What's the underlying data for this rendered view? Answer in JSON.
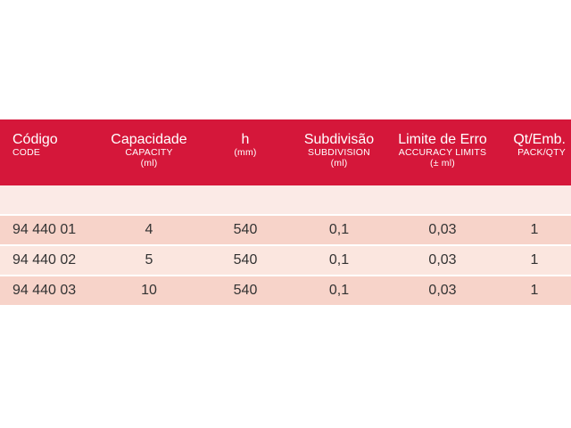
{
  "table": {
    "columns": [
      {
        "title": "Código",
        "subtitle": "CODE",
        "unit": ""
      },
      {
        "title": "Capacidade",
        "subtitle": "CAPACITY",
        "unit": "(ml)"
      },
      {
        "title": "h",
        "subtitle": "",
        "unit": "(mm)"
      },
      {
        "title": "Subdivisão",
        "subtitle": "SUBDIVISION",
        "unit": "(ml)"
      },
      {
        "title": "Limite de Erro",
        "subtitle": "ACCURACY LIMITS",
        "unit": "(± ml)"
      },
      {
        "title": "Qt/Emb.",
        "subtitle": "PACK/QTY",
        "unit": ""
      }
    ],
    "rows": [
      {
        "code": "94 440 01",
        "capacity": "4",
        "h": "540",
        "subdivision": "0,1",
        "accuracy": "0,03",
        "qty": "1"
      },
      {
        "code": "94 440 02",
        "capacity": "5",
        "h": "540",
        "subdivision": "0,1",
        "accuracy": "0,03",
        "qty": "1"
      },
      {
        "code": "94 440 03",
        "capacity": "10",
        "h": "540",
        "subdivision": "0,1",
        "accuracy": "0,03",
        "qty": "1"
      }
    ]
  },
  "colors": {
    "header_bg": "#d5173a",
    "header_text": "#ffffff",
    "row_odd": "#f7d3c9",
    "row_even": "#fbe6df",
    "spacer": "#fbeae6"
  }
}
